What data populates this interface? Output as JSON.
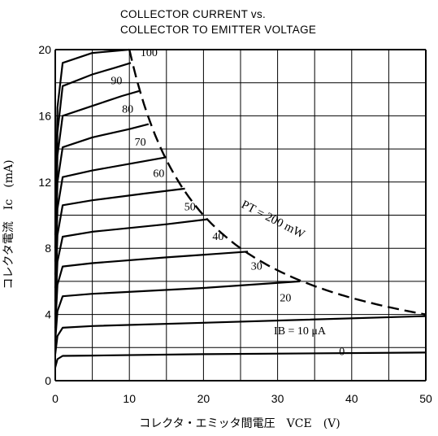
{
  "chart_data": {
    "type": "line",
    "title": "COLLECTOR CURRENT vs.",
    "subtitle": "COLLECTOR TO EMITTER VOLTAGE",
    "xlabel": "コレクタ・エミッタ間電圧　VCE　(V)",
    "ylabel": "コレクタ電流　Ic　(mA)",
    "xlim": [
      0,
      50
    ],
    "ylim": [
      0,
      20
    ],
    "x_ticks": [
      "0",
      "10",
      "20",
      "30",
      "40",
      "50"
    ],
    "y_ticks": [
      "0",
      "4",
      "8",
      "12",
      "16",
      "20"
    ],
    "grid": true,
    "ib_label_prefix": "IB = ",
    "ib_unit": " μA",
    "series": [
      {
        "name": "0",
        "label": "0",
        "points": [
          [
            0,
            0.8
          ],
          [
            0.3,
            1.3
          ],
          [
            1,
            1.5
          ],
          [
            5,
            1.52
          ],
          [
            20,
            1.6
          ],
          [
            50,
            1.7
          ]
        ]
      },
      {
        "name": "10",
        "label": "10",
        "points": [
          [
            0,
            1.6
          ],
          [
            0.3,
            2.7
          ],
          [
            1,
            3.2
          ],
          [
            5,
            3.3
          ],
          [
            20,
            3.5
          ],
          [
            50,
            3.9
          ]
        ]
      },
      {
        "name": "20",
        "label": "20",
        "points": [
          [
            0,
            2.4
          ],
          [
            0.3,
            4.2
          ],
          [
            1,
            5.1
          ],
          [
            5,
            5.25
          ],
          [
            20,
            5.6
          ],
          [
            33,
            6.0
          ]
        ]
      },
      {
        "name": "30",
        "label": "30",
        "points": [
          [
            0,
            3.2
          ],
          [
            0.3,
            5.8
          ],
          [
            1,
            6.9
          ],
          [
            5,
            7.1
          ],
          [
            15,
            7.45
          ],
          [
            26,
            7.8
          ]
        ]
      },
      {
        "name": "40",
        "label": "40",
        "points": [
          [
            0,
            4.0
          ],
          [
            0.3,
            7.2
          ],
          [
            1,
            8.7
          ],
          [
            5,
            9.0
          ],
          [
            15,
            9.45
          ],
          [
            20.5,
            9.75
          ]
        ]
      },
      {
        "name": "50",
        "label": "50",
        "points": [
          [
            0,
            4.8
          ],
          [
            0.3,
            8.8
          ],
          [
            1,
            10.6
          ],
          [
            5,
            10.9
          ],
          [
            12,
            11.3
          ],
          [
            17.5,
            11.6
          ]
        ]
      },
      {
        "name": "60",
        "label": "60",
        "points": [
          [
            0,
            5.6
          ],
          [
            0.3,
            10.4
          ],
          [
            1,
            12.3
          ],
          [
            5,
            12.7
          ],
          [
            10,
            13.1
          ],
          [
            15,
            13.5
          ]
        ]
      },
      {
        "name": "70",
        "label": "70",
        "points": [
          [
            0,
            6.4
          ],
          [
            0.3,
            12.0
          ],
          [
            1,
            14.1
          ],
          [
            5,
            14.7
          ],
          [
            10,
            15.2
          ],
          [
            12.6,
            15.5
          ]
        ]
      },
      {
        "name": "80",
        "label": "80",
        "points": [
          [
            0,
            7.2
          ],
          [
            0.3,
            13.6
          ],
          [
            1,
            16.0
          ],
          [
            5,
            16.6
          ],
          [
            9,
            17.2
          ],
          [
            11.3,
            17.5
          ]
        ]
      },
      {
        "name": "90",
        "label": "90",
        "points": [
          [
            0,
            8.0
          ],
          [
            0.3,
            15.0
          ],
          [
            1,
            17.8
          ],
          [
            5,
            18.5
          ],
          [
            8,
            18.9
          ],
          [
            10.2,
            19.2
          ]
        ]
      },
      {
        "name": "100",
        "label": "100",
        "points": [
          [
            0,
            8.8
          ],
          [
            0.3,
            16.5
          ],
          [
            1,
            19.2
          ],
          [
            5,
            19.8
          ],
          [
            10,
            20.0
          ]
        ]
      }
    ],
    "power_limit": {
      "label": "PT = 200 mW",
      "power_mW": 200,
      "x_range": [
        10,
        50
      ],
      "style": "dashed"
    }
  }
}
